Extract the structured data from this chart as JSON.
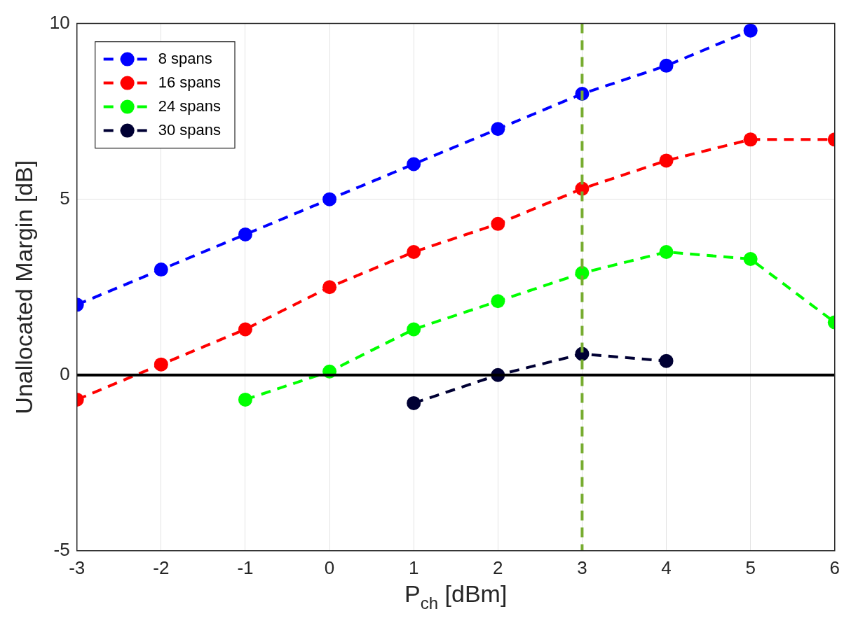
{
  "chart_data": {
    "type": "line",
    "xlabel": "P$_{ch}$ [dBm]",
    "ylabel": "Unallocated Margin [dB]",
    "xlim": [
      -3,
      6
    ],
    "xticks": [
      -3,
      -2,
      -1,
      0,
      1,
      2,
      3,
      4,
      5,
      6
    ],
    "ylim": [
      -5,
      10
    ],
    "yticks": [
      -5,
      0,
      5,
      10
    ],
    "grid": true,
    "legend": "top left",
    "marker": "circle",
    "line_style": "dashed",
    "series": [
      {
        "name": "8 spans",
        "color": "#0000ff",
        "x": [
          -3,
          -2,
          -1,
          0,
          1,
          2,
          3,
          4,
          5
        ],
        "values": [
          2,
          3,
          4,
          5,
          6,
          7,
          8,
          8.8,
          9.8
        ]
      },
      {
        "name": "16 spans",
        "color": "#ff0000",
        "x": [
          -3,
          -2,
          -1,
          0,
          1,
          2,
          3,
          4,
          5,
          6
        ],
        "values": [
          -0.7,
          0.3,
          1.3,
          2.5,
          3.5,
          4.3,
          5.3,
          6.1,
          6.7,
          6.7
        ]
      },
      {
        "name": "24 spans",
        "color": "#00ff00",
        "x": [
          -1,
          0,
          1,
          2,
          3,
          4,
          5,
          6
        ],
        "values": [
          -0.7,
          0.1,
          1.3,
          2.1,
          2.9,
          3.5,
          3.3,
          1.5
        ]
      },
      {
        "name": "30 spans",
        "color": "#000033",
        "x": [
          1,
          2,
          3,
          4
        ],
        "values": [
          -0.8,
          0,
          0.6,
          0.4
        ]
      }
    ],
    "ref_lines": [
      {
        "axis": "y",
        "value": 0,
        "color": "#000000",
        "line_style": "solid"
      },
      {
        "axis": "x",
        "value": 3,
        "color": "#77ac30",
        "line_style": "dashed"
      }
    ]
  }
}
